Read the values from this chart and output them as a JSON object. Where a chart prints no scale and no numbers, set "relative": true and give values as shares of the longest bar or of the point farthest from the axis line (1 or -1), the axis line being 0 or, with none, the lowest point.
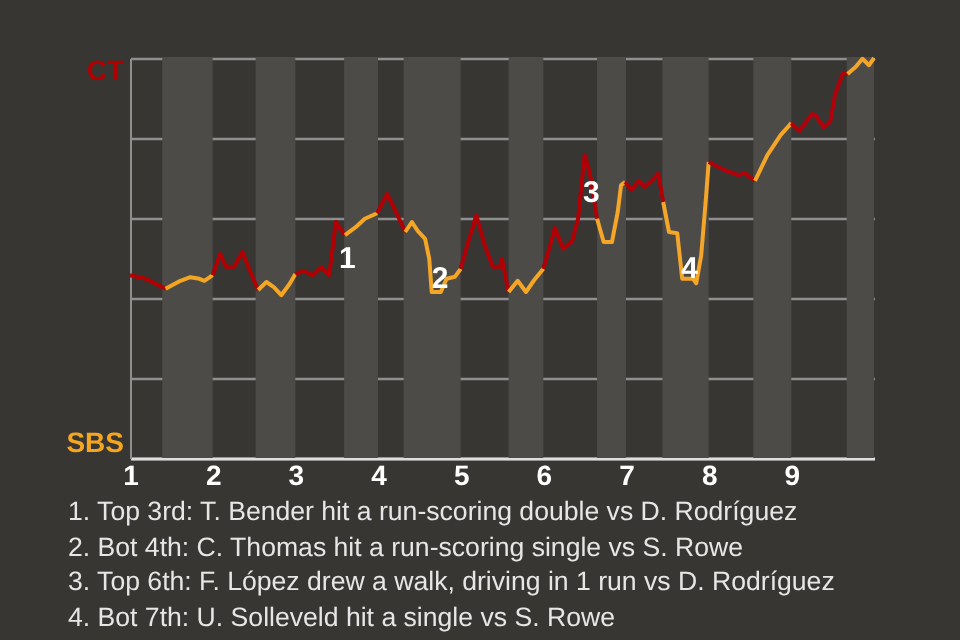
{
  "chart_data": {
    "type": "line",
    "relative": true,
    "series": [
      {
        "color": "#b00001",
        "x": [
          1,
          1.19,
          1.43
        ],
        "values": [
          0.457,
          0.448,
          0.423
        ]
      },
      {
        "color": "#f5a621",
        "x": [
          1.43,
          1.61,
          1.73,
          1.84,
          1.9,
          2
        ],
        "values": [
          0.423,
          0.443,
          0.452,
          0.448,
          0.443,
          0.457
        ]
      },
      {
        "color": "#b00002",
        "x": [
          2,
          2.09,
          2.16,
          2.26,
          2.36,
          2.44,
          2.55
        ],
        "values": [
          0.457,
          0.51,
          0.478,
          0.478,
          0.515,
          0.473,
          0.42
        ]
      },
      {
        "color": "#f5a622",
        "x": [
          2.55,
          2.65,
          2.74,
          2.83,
          2.93,
          3
        ],
        "values": [
          0.42,
          0.44,
          0.427,
          0.407,
          0.435,
          0.46
        ]
      },
      {
        "color": "#b00003",
        "x": [
          3,
          3.1,
          3.21,
          3.31,
          3.41,
          3.49,
          3.6
        ],
        "values": [
          0.46,
          0.468,
          0.457,
          0.477,
          0.457,
          0.59,
          0.557
        ]
      },
      {
        "color": "#f5a624",
        "x": [
          3.6,
          3.73,
          3.84,
          3.99
        ],
        "values": [
          0.557,
          0.577,
          0.598,
          0.612
        ]
      },
      {
        "color": "#b00004",
        "x": [
          3.99,
          4.11,
          4.2,
          4.33
        ],
        "values": [
          0.612,
          0.66,
          0.623,
          0.565
        ]
      },
      {
        "color": "#f5a625",
        "x": [
          4.33,
          4.41,
          4.48,
          4.57,
          4.62,
          4.65,
          4.76,
          4.83,
          4.93,
          5
        ],
        "values": [
          0.565,
          0.59,
          0.568,
          0.548,
          0.498,
          0.415,
          0.415,
          0.448,
          0.453,
          0.473
        ]
      },
      {
        "color": "#b00005",
        "x": [
          5,
          5.08,
          5.19,
          5.29,
          5.39,
          5.48,
          5.5,
          5.58
        ],
        "values": [
          0.473,
          0.532,
          0.607,
          0.532,
          0.478,
          0.478,
          0.498,
          0.415
        ]
      },
      {
        "color": "#f5a626",
        "x": [
          5.58,
          5.69,
          5.79,
          5.89,
          6
        ],
        "values": [
          0.415,
          0.443,
          0.415,
          0.445,
          0.473
        ]
      },
      {
        "color": "#b00006",
        "x": [
          6,
          6.07,
          6.14,
          6.24,
          6.35,
          6.42,
          6.5,
          6.56,
          6.65
        ],
        "values": [
          0.473,
          0.523,
          0.575,
          0.523,
          0.543,
          0.598,
          0.757,
          0.715,
          0.598
        ]
      },
      {
        "color": "#f5a627",
        "x": [
          6.65,
          6.73,
          6.83,
          6.9,
          6.94,
          6.99
        ],
        "values": [
          0.598,
          0.54,
          0.54,
          0.615,
          0.682,
          0.69
        ]
      },
      {
        "color": "#b00007",
        "x": [
          6.99,
          7.07,
          7.15,
          7.23,
          7.32,
          7.39,
          7.45
        ],
        "values": [
          0.69,
          0.67,
          0.693,
          0.678,
          0.695,
          0.712,
          0.64
        ]
      },
      {
        "color": "#f5a628",
        "x": [
          7.45,
          7.52,
          7.62,
          7.68,
          7.81,
          7.85,
          7.91,
          7.97,
          8
        ],
        "values": [
          0.64,
          0.565,
          0.562,
          0.448,
          0.448,
          0.437,
          0.507,
          0.657,
          0.74
        ]
      },
      {
        "color": "#b00008",
        "x": [
          8,
          8.19,
          8.36,
          8.44,
          8.56
        ],
        "values": [
          0.74,
          0.72,
          0.707,
          0.712,
          0.693
        ]
      },
      {
        "color": "#f5a629",
        "x": [
          8.56,
          8.71,
          8.87,
          9
        ],
        "values": [
          0.693,
          0.757,
          0.807,
          0.837
        ]
      },
      {
        "color": "#b00009",
        "x": [
          9,
          9.1,
          9.25,
          9.29,
          9.39,
          9.47,
          9.53,
          9.62,
          9.68
        ],
        "values": [
          0.837,
          0.818,
          0.86,
          0.857,
          0.827,
          0.84,
          0.91,
          0.96,
          0.96
        ]
      },
      {
        "color": "#f5a62a",
        "x": [
          9.68,
          9.78,
          9.86,
          9.94,
          10
        ],
        "values": [
          0.96,
          0.978,
          0.998,
          0.982,
          1
        ]
      }
    ],
    "xlim": [
      1,
      10
    ],
    "xticks": [
      1,
      2,
      3,
      4,
      5,
      6,
      7,
      8,
      9
    ],
    "grid": "y",
    "bands": [
      {
        "axis": "x",
        "from": 1.39,
        "to": 2,
        "color": "#4d4b48"
      },
      {
        "axis": "x",
        "from": 2.52,
        "to": 3,
        "color": "#4d4b48"
      },
      {
        "axis": "x",
        "from": 3.59,
        "to": 4,
        "color": "#4d4b48"
      },
      {
        "axis": "x",
        "from": 4.31,
        "to": 5,
        "color": "#4d4b48"
      },
      {
        "axis": "x",
        "from": 5.58,
        "to": 6,
        "color": "#4d4b48"
      },
      {
        "axis": "x",
        "from": 6.65,
        "to": 7,
        "color": "#4d4b48"
      },
      {
        "axis": "x",
        "from": 7.44,
        "to": 8,
        "color": "#4d4b48"
      },
      {
        "axis": "x",
        "from": 8.54,
        "to": 9,
        "color": "#4d4b48"
      },
      {
        "axis": "x",
        "from": 9.67,
        "to": 10,
        "color": "#4d4b48"
      }
    ],
    "annotations": [
      "CT",
      "SBS",
      {
        "text": "1",
        "x": 3.63,
        "y": 0.5
      },
      {
        "text": "2",
        "x": 4.75,
        "y": 0.45
      },
      {
        "text": "3",
        "x": 6.58,
        "y": 0.665
      },
      {
        "text": "4",
        "x": 7.77,
        "y": 0.475
      },
      "1. Top 3rd: T. Bender hit a run-scoring double vs D. Rodríguez",
      "2. Bot 4th: C. Thomas hit a run-scoring single vs S. Rowe",
      "3. Top 6th: F. López drew a walk, driving in 1 run vs D. Rodríguez",
      "4. Bot 7th: U. Solleveld hit a single vs S. Rowe"
    ]
  }
}
